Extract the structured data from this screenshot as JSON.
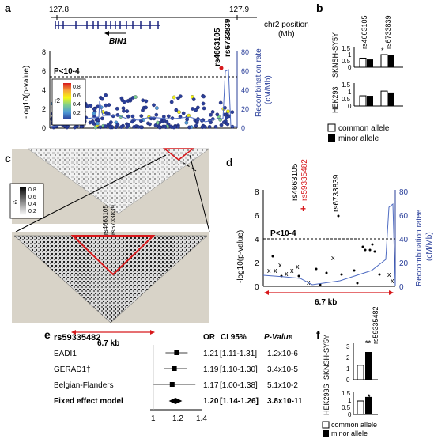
{
  "panel_a": {
    "letter": "a",
    "pos_left": "127.8",
    "pos_right": "127.9",
    "pos_axis_label_1": "chr2 position",
    "pos_axis_label_2": "(Mb)",
    "gene": "BIN1",
    "ylabel": "-log10(p-value)",
    "ylabel_right_1": "Recombination rate",
    "ylabel_right_2": "(cM/Mb)",
    "y_ticks": [
      "0",
      "2",
      "4",
      "6",
      "8"
    ],
    "y_ticks_right": [
      "0",
      "20",
      "40",
      "60",
      "80"
    ],
    "threshold_label": "P<10-4",
    "snp_1": "rs4663105",
    "snp_2": "rs6733839",
    "legend_title": "r2",
    "legend_ticks": [
      "0.8",
      "0.6",
      "0.4",
      "0.2"
    ],
    "legend_colors": [
      "#d7191c",
      "#f6a23b",
      "#f7f711",
      "#7fcf8e",
      "#4f9bd6",
      "#2a3f9a"
    ]
  },
  "panel_b": {
    "letter": "b",
    "cell_1": "SKNSH-SY5Y",
    "cell_2": "HEK293",
    "snp_1": "rs4663105",
    "snp_2": "rs6733839",
    "y_ticks_1": [
      "0",
      "0.5",
      "1",
      "1.5"
    ],
    "y_ticks_2": [
      "0",
      "0.5",
      "1",
      "1.5"
    ],
    "star": "*",
    "legend_common": "common allele",
    "legend_minor": "minor allele",
    "bars_sknsh": {
      "rs4663105": {
        "common": 0.72,
        "minor": 0.62
      },
      "rs6733839": {
        "common": 1.0,
        "minor": 0.95
      }
    },
    "bars_hek": {
      "rs4663105": {
        "common": 0.72,
        "minor": 0.72
      },
      "rs6733839": {
        "common": 1.05,
        "minor": 0.95
      }
    }
  },
  "panel_c": {
    "letter": "c",
    "legend_title": "r2",
    "legend_ticks": [
      "0.8",
      "0.6",
      "0.4",
      "0.2"
    ],
    "snp_1": "rs4663105",
    "snp_2": "rs6733839",
    "span": "6.7 kb"
  },
  "panel_d": {
    "letter": "d",
    "snp_1": "rs4663105",
    "snp_2": "rs59335482",
    "snp_3": "rs6733839",
    "ylabel": "-log10(p-value)",
    "ylabel_right_1": "Reccombination ratee",
    "ylabel_right_2": "(cM/Mb)",
    "y_ticks": [
      "0",
      "2",
      "4",
      "6",
      "8"
    ],
    "y_ticks_right": [
      "0",
      "20",
      "40",
      "60",
      "80"
    ],
    "threshold_label": "P<10-4",
    "span": "6.7 kb"
  },
  "panel_e": {
    "letter": "e",
    "snp": "rs59335482",
    "col_or": "OR",
    "col_ci": "CI 95%",
    "col_p": "P-Value",
    "rows": [
      {
        "name": "EADI1",
        "or": "1.21",
        "ci": "[1.11-1.31]",
        "p": "1.2x10-6",
        "value": 1.21,
        "lo": 1.11,
        "hi": 1.31
      },
      {
        "name": "GERAD1†",
        "or": "1.19",
        "ci": "[1.10-1.30]",
        "p": "3.4x10-5",
        "value": 1.19,
        "lo": 1.1,
        "hi": 1.3
      },
      {
        "name": "Belgian-Flanders",
        "or": "1.17",
        "ci": "[1.00-1.38]",
        "p": "5.1x10-2",
        "value": 1.17,
        "lo": 1.0,
        "hi": 1.38
      }
    ],
    "fixed": {
      "name": "Fixed effect model",
      "or": "1.20",
      "ci": "[1.14-1.26]",
      "p": "3.8x10-11",
      "value": 1.2,
      "lo": 1.14,
      "hi": 1.26
    },
    "x_ticks": [
      "1",
      "1.2",
      "1.4"
    ]
  },
  "panel_f": {
    "letter": "f",
    "snp": "rs59335482",
    "cell_1": "SKNSH-SY5Y",
    "cell_2": "HEK293S",
    "y_ticks_1": [
      "0",
      "1",
      "2",
      "3"
    ],
    "y_ticks_2": [
      "0",
      "0.5",
      "1",
      "1.5"
    ],
    "star_1": "**",
    "star_2": "*",
    "legend_common": "common allele",
    "legend_minor": "minor allele",
    "bars_sknsh": {
      "common": 1.3,
      "minor": 2.5
    },
    "bars_hek": {
      "common": 1.0,
      "minor": 1.3
    }
  }
}
